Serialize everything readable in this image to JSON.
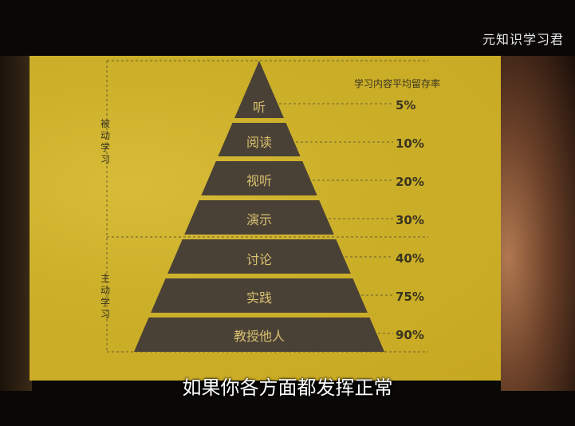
{
  "watermark": "元知识学习君",
  "subtitle": "如果你各方面都发挥正常",
  "diagram": {
    "header": "学习内容平均留存率",
    "groups": [
      {
        "label": "被动学习",
        "tiers": [
          0,
          1,
          2,
          3
        ]
      },
      {
        "label": "主动学习",
        "tiers": [
          4,
          5,
          6
        ]
      }
    ],
    "tiers": [
      {
        "label": "听",
        "value": "5%"
      },
      {
        "label": "阅读",
        "value": "10%"
      },
      {
        "label": "视听",
        "value": "20%"
      },
      {
        "label": "演示",
        "value": "30%"
      },
      {
        "label": "讨论",
        "value": "40%"
      },
      {
        "label": "实践",
        "value": "75%"
      },
      {
        "label": "教授他人",
        "value": "90%"
      }
    ],
    "colors": {
      "background": "#c8a822",
      "tier_fill": "#4a4136",
      "tier_text": "#d8c070",
      "text": "#3a3420"
    }
  }
}
